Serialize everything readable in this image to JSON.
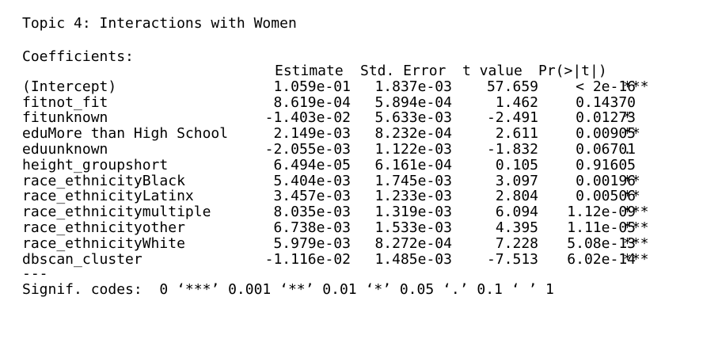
{
  "title": "Topic 4: Interactions with Women",
  "section_label": "Coefficients:",
  "headers": {
    "estimate": "Estimate",
    "std_error": "Std. Error",
    "t_value": "t value",
    "p_value": "Pr(>|t|)"
  },
  "rows": [
    {
      "term": "(Intercept)",
      "estimate": "1.059e-01",
      "std_error": "1.837e-03",
      "t_value": "57.659",
      "p_value": "< 2e-16",
      "sig": "***"
    },
    {
      "term": "fitnot_fit",
      "estimate": "8.619e-04",
      "std_error": "5.894e-04",
      "t_value": "1.462",
      "p_value": "0.14370",
      "sig": ""
    },
    {
      "term": "fitunknown",
      "estimate": "-1.403e-02",
      "std_error": "5.633e-03",
      "t_value": "-2.491",
      "p_value": "0.01273",
      "sig": "*"
    },
    {
      "term": "eduMore than High School",
      "estimate": "2.149e-03",
      "std_error": "8.232e-04",
      "t_value": "2.611",
      "p_value": "0.00905",
      "sig": "**"
    },
    {
      "term": "eduunknown",
      "estimate": "-2.055e-03",
      "std_error": "1.122e-03",
      "t_value": "-1.832",
      "p_value": "0.06701",
      "sig": "."
    },
    {
      "term": "height_groupshort",
      "estimate": "6.494e-05",
      "std_error": "6.161e-04",
      "t_value": "0.105",
      "p_value": "0.91605",
      "sig": ""
    },
    {
      "term": "race_ethnicityBlack",
      "estimate": "5.404e-03",
      "std_error": "1.745e-03",
      "t_value": "3.097",
      "p_value": "0.00196",
      "sig": "**"
    },
    {
      "term": "race_ethnicityLatinx",
      "estimate": "3.457e-03",
      "std_error": "1.233e-03",
      "t_value": "2.804",
      "p_value": "0.00506",
      "sig": "**"
    },
    {
      "term": "race_ethnicitymultiple",
      "estimate": "8.035e-03",
      "std_error": "1.319e-03",
      "t_value": "6.094",
      "p_value": "1.12e-09",
      "sig": "***"
    },
    {
      "term": "race_ethnicityother",
      "estimate": "6.738e-03",
      "std_error": "1.533e-03",
      "t_value": "4.395",
      "p_value": "1.11e-05",
      "sig": "***"
    },
    {
      "term": "race_ethnicityWhite",
      "estimate": "5.979e-03",
      "std_error": "8.272e-04",
      "t_value": "7.228",
      "p_value": "5.08e-13",
      "sig": "***"
    },
    {
      "term": "dbscan_cluster",
      "estimate": "-1.116e-02",
      "std_error": "1.485e-03",
      "t_value": "-7.513",
      "p_value": "6.02e-14",
      "sig": "***"
    }
  ],
  "separator": "---",
  "signif_codes": "Signif. codes:  0 ‘***’ 0.001 ‘**’ 0.01 ‘*’ 0.05 ‘.’ 0.1 ‘ ’ 1"
}
